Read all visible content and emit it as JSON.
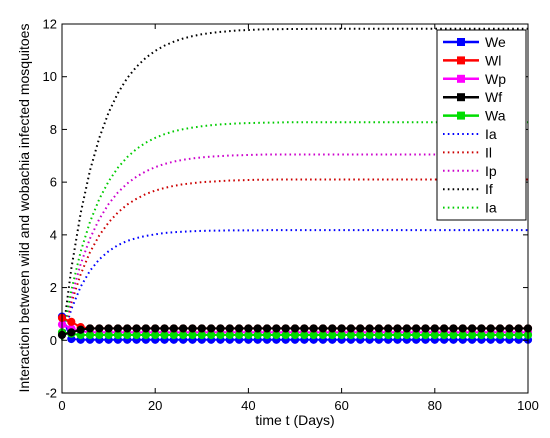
{
  "chart_data": {
    "type": "line",
    "title": "",
    "xlabel": "time t (Days)",
    "ylabel": "Interaction between wild and wobachia infected mosquitoes",
    "xlim": [
      0,
      100
    ],
    "ylim": [
      -2,
      12
    ],
    "xticks": [
      0,
      20,
      40,
      60,
      80,
      100
    ],
    "yticks": [
      -2,
      0,
      2,
      4,
      6,
      8,
      10,
      12
    ],
    "grid": false,
    "legend_position": "top-right",
    "x": [
      0,
      2,
      4,
      6,
      8,
      10,
      12,
      14,
      16,
      18,
      20,
      22,
      24,
      26,
      28,
      30,
      32,
      34,
      36,
      38,
      40,
      42,
      44,
      46,
      48,
      50,
      52,
      54,
      56,
      58,
      60,
      62,
      64,
      66,
      68,
      70,
      72,
      74,
      76,
      78,
      80,
      82,
      84,
      86,
      88,
      90,
      92,
      94,
      96,
      98,
      100
    ],
    "series": [
      {
        "name": "We",
        "color": "#0000ff",
        "style": "solid-marker",
        "values": [
          0.9,
          0.05,
          0.02,
          0.02,
          0.02,
          0.02,
          0.02,
          0.02,
          0.02,
          0.02,
          0.02,
          0.02,
          0.02,
          0.02,
          0.02,
          0.02,
          0.02,
          0.02,
          0.02,
          0.02,
          0.02,
          0.02,
          0.02,
          0.02,
          0.02,
          0.02,
          0.02,
          0.02,
          0.02,
          0.02,
          0.02,
          0.02,
          0.02,
          0.02,
          0.02,
          0.02,
          0.02,
          0.02,
          0.02,
          0.02,
          0.02,
          0.02,
          0.02,
          0.02,
          0.02,
          0.02,
          0.02,
          0.02,
          0.02,
          0.02,
          0.02
        ]
      },
      {
        "name": "Wl",
        "color": "#ff0000",
        "style": "solid-marker",
        "values": [
          0.85,
          0.7,
          0.5,
          0.45,
          0.45,
          0.45,
          0.45,
          0.45,
          0.45,
          0.45,
          0.45,
          0.45,
          0.45,
          0.45,
          0.45,
          0.45,
          0.45,
          0.45,
          0.45,
          0.45,
          0.45,
          0.45,
          0.45,
          0.45,
          0.45,
          0.45,
          0.45,
          0.45,
          0.45,
          0.45,
          0.45,
          0.45,
          0.45,
          0.45,
          0.45,
          0.45,
          0.45,
          0.45,
          0.45,
          0.45,
          0.45,
          0.45,
          0.45,
          0.45,
          0.45,
          0.45,
          0.45,
          0.45,
          0.45,
          0.45,
          0.45
        ]
      },
      {
        "name": "Wp",
        "color": "#ff00ff",
        "style": "solid-marker",
        "values": [
          0.6,
          0.45,
          0.35,
          0.3,
          0.3,
          0.3,
          0.3,
          0.3,
          0.3,
          0.3,
          0.3,
          0.3,
          0.3,
          0.3,
          0.3,
          0.3,
          0.3,
          0.3,
          0.3,
          0.3,
          0.3,
          0.3,
          0.3,
          0.3,
          0.3,
          0.3,
          0.3,
          0.3,
          0.3,
          0.3,
          0.3,
          0.3,
          0.3,
          0.3,
          0.3,
          0.3,
          0.3,
          0.3,
          0.3,
          0.3,
          0.3,
          0.3,
          0.3,
          0.3,
          0.3,
          0.3,
          0.3,
          0.3,
          0.3,
          0.3,
          0.3
        ]
      },
      {
        "name": "Wf",
        "color": "#000000",
        "style": "solid-marker",
        "values": [
          0.2,
          0.3,
          0.4,
          0.45,
          0.45,
          0.45,
          0.45,
          0.45,
          0.45,
          0.45,
          0.45,
          0.45,
          0.45,
          0.45,
          0.45,
          0.45,
          0.45,
          0.45,
          0.45,
          0.45,
          0.45,
          0.45,
          0.45,
          0.45,
          0.45,
          0.45,
          0.45,
          0.45,
          0.45,
          0.45,
          0.45,
          0.45,
          0.45,
          0.45,
          0.45,
          0.45,
          0.45,
          0.45,
          0.45,
          0.45,
          0.45,
          0.45,
          0.45,
          0.45,
          0.45,
          0.45,
          0.45,
          0.45,
          0.45,
          0.45,
          0.45
        ]
      },
      {
        "name": "Wa",
        "color": "#00dd00",
        "style": "solid-marker",
        "values": [
          0.3,
          0.25,
          0.2,
          0.2,
          0.2,
          0.2,
          0.2,
          0.2,
          0.2,
          0.2,
          0.2,
          0.2,
          0.2,
          0.2,
          0.2,
          0.2,
          0.2,
          0.2,
          0.2,
          0.2,
          0.2,
          0.2,
          0.2,
          0.2,
          0.2,
          0.2,
          0.2,
          0.2,
          0.2,
          0.2,
          0.2,
          0.2,
          0.2,
          0.2,
          0.2,
          0.2,
          0.2,
          0.2,
          0.2,
          0.2,
          0.2,
          0.2,
          0.2,
          0.2,
          0.2,
          0.2,
          0.2,
          0.2,
          0.2,
          0.2,
          0.2
        ]
      },
      {
        "name": "Ia",
        "color": "#0000ff",
        "style": "dotted",
        "values": [
          0,
          1.18,
          2.03,
          2.64,
          3.07,
          3.38,
          3.61,
          3.77,
          3.88,
          3.96,
          4.02,
          4.07,
          4.1,
          4.12,
          4.14,
          4.15,
          4.16,
          4.16,
          4.17,
          4.17,
          4.17,
          4.17,
          4.18,
          4.18,
          4.18,
          4.18,
          4.18,
          4.18,
          4.18,
          4.18,
          4.18,
          4.18,
          4.18,
          4.18,
          4.18,
          4.18,
          4.18,
          4.18,
          4.18,
          4.18,
          4.18,
          4.18,
          4.18,
          4.18,
          4.18,
          4.18,
          4.18,
          4.18,
          4.18,
          4.18,
          4.18
        ]
      },
      {
        "name": "Il",
        "color": "#cc0000",
        "style": "dotted",
        "values": [
          0,
          1.41,
          2.5,
          3.34,
          3.98,
          4.47,
          4.85,
          5.15,
          5.37,
          5.55,
          5.68,
          5.78,
          5.86,
          5.92,
          5.96,
          6.0,
          6.02,
          6.04,
          6.06,
          6.07,
          6.08,
          6.09,
          6.09,
          6.1,
          6.1,
          6.1,
          6.1,
          6.1,
          6.1,
          6.1,
          6.1,
          6.1,
          6.1,
          6.1,
          6.1,
          6.1,
          6.1,
          6.1,
          6.1,
          6.1,
          6.1,
          6.1,
          6.1,
          6.1,
          6.1,
          6.1,
          6.1,
          6.1,
          6.1,
          6.1,
          6.1
        ]
      },
      {
        "name": "Ip",
        "color": "#cc00cc",
        "style": "dotted",
        "values": [
          0,
          1.63,
          2.89,
          3.86,
          4.6,
          5.17,
          5.61,
          5.95,
          6.21,
          6.41,
          6.57,
          6.69,
          6.78,
          6.85,
          6.9,
          6.94,
          6.97,
          6.99,
          7.01,
          7.02,
          7.03,
          7.04,
          7.05,
          7.05,
          7.05,
          7.05,
          7.05,
          7.05,
          7.05,
          7.05,
          7.05,
          7.05,
          7.05,
          7.05,
          7.05,
          7.05,
          7.05,
          7.05,
          7.05,
          7.05,
          7.05,
          7.05,
          7.05,
          7.05,
          7.05,
          7.05,
          7.05,
          7.05,
          7.05,
          7.05,
          7.05
        ]
      },
      {
        "name": "If",
        "color": "#000000",
        "style": "dotted",
        "values": [
          0,
          2.72,
          4.82,
          6.44,
          7.68,
          8.64,
          9.38,
          9.95,
          10.38,
          10.72,
          10.98,
          11.18,
          11.33,
          11.45,
          11.54,
          11.61,
          11.66,
          11.7,
          11.73,
          11.76,
          11.77,
          11.79,
          11.8,
          11.8,
          11.81,
          11.81,
          11.81,
          11.82,
          11.82,
          11.82,
          11.82,
          11.82,
          11.82,
          11.82,
          11.82,
          11.82,
          11.82,
          11.82,
          11.82,
          11.82,
          11.82,
          11.82,
          11.82,
          11.82,
          11.82,
          11.82,
          11.82,
          11.82,
          11.82,
          11.82,
          11.82
        ]
      },
      {
        "name": "Ia",
        "color": "#00cc00",
        "style": "dotted",
        "values": [
          0,
          1.89,
          3.36,
          4.49,
          5.36,
          6.03,
          6.55,
          6.95,
          7.26,
          7.5,
          7.68,
          7.82,
          7.93,
          8.01,
          8.07,
          8.12,
          8.16,
          8.19,
          8.21,
          8.23,
          8.24,
          8.25,
          8.26,
          8.26,
          8.27,
          8.27,
          8.27,
          8.27,
          8.27,
          8.27,
          8.27,
          8.27,
          8.27,
          8.27,
          8.27,
          8.27,
          8.27,
          8.27,
          8.27,
          8.27,
          8.27,
          8.27,
          8.27,
          8.27,
          8.27,
          8.27,
          8.27,
          8.27,
          8.27,
          8.27,
          8.27
        ]
      }
    ]
  }
}
